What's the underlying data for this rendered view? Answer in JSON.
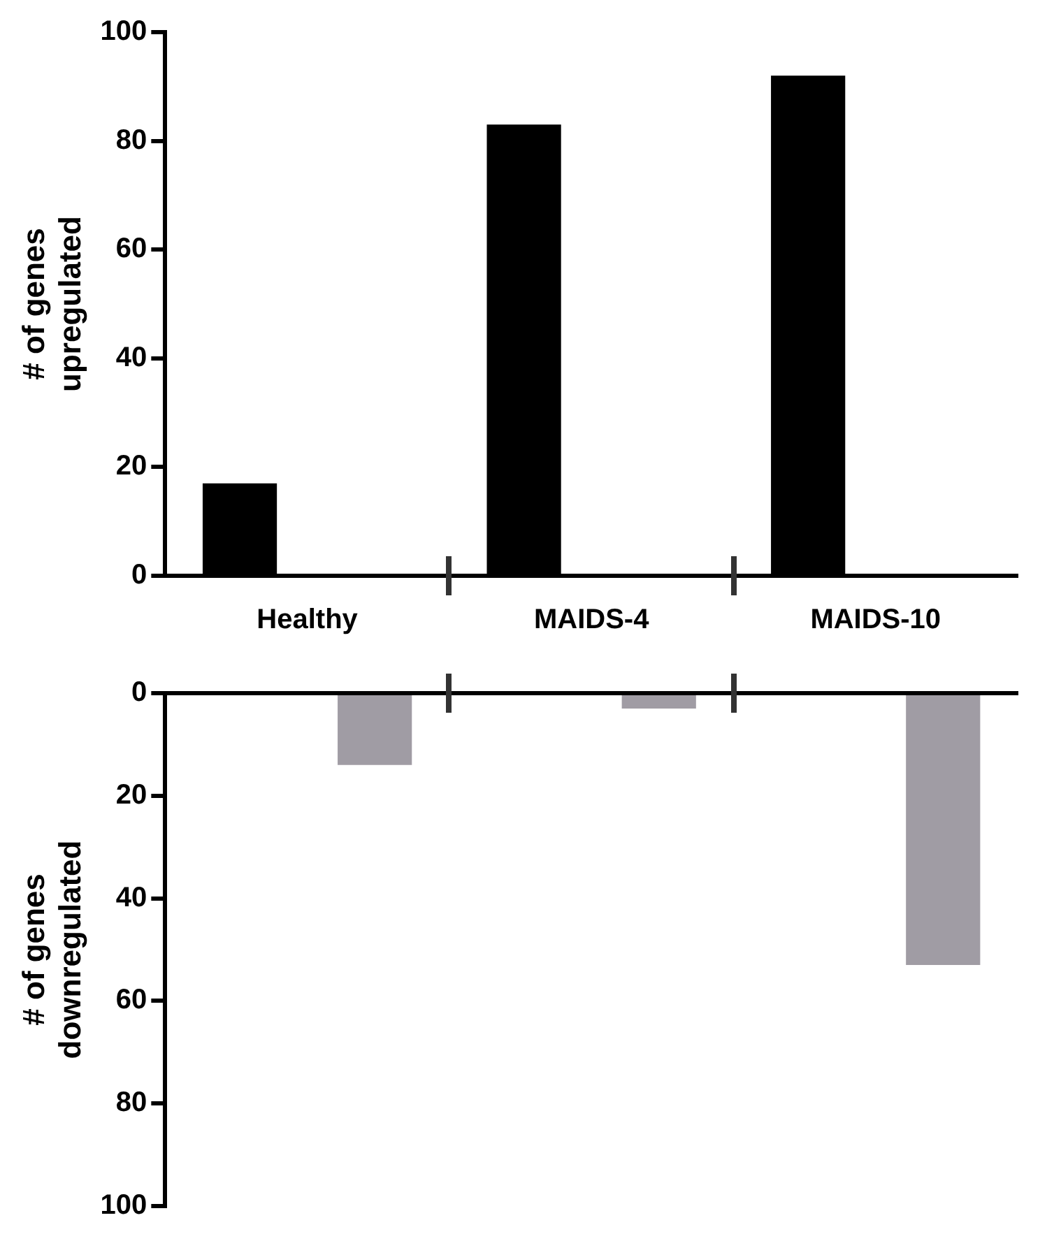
{
  "chart_data": [
    {
      "type": "bar",
      "ylabel": "# of genes\nupregulated",
      "categories": [
        "Healthy",
        "MAIDS-4",
        "MAIDS-10"
      ],
      "series": [
        {
          "color": "#000000",
          "values": [
            17,
            83,
            92
          ]
        },
        {
          "color": "#a09ca4",
          "values": [
            null,
            null,
            null
          ]
        }
      ],
      "ylim": [
        0,
        100
      ],
      "yticks": [
        0,
        20,
        40,
        60,
        80,
        100
      ],
      "grid": false,
      "legend": false
    },
    {
      "type": "bar",
      "ylabel": "# of genes\ndownregulated",
      "categories": [
        null,
        null,
        null
      ],
      "series": [
        {
          "color": "#000000",
          "values": [
            null,
            null,
            null
          ]
        },
        {
          "color": "#a09ca4",
          "values": [
            14,
            3,
            53
          ]
        }
      ],
      "ylim": [
        100,
        0
      ],
      "yticks": [
        0,
        20,
        40,
        60,
        80,
        100
      ],
      "grid": false,
      "legend": false,
      "tick_labels": "y"
    }
  ]
}
